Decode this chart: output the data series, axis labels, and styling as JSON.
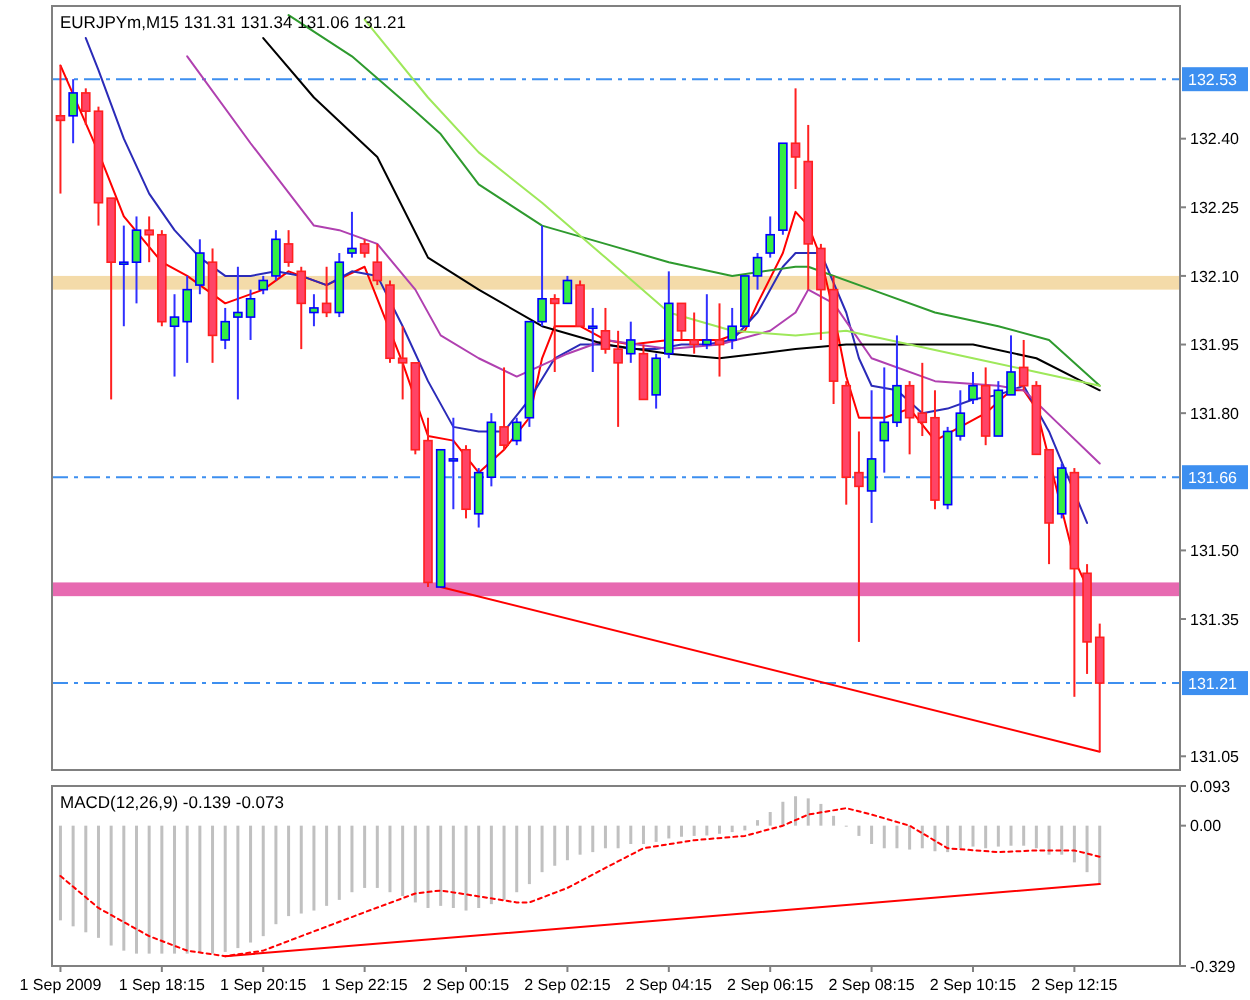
{
  "chart_data": [
    {
      "type": "candlestick",
      "title": "EURJPYm,M15  131.31 131.34 131.06 131.21",
      "tick_labels": "y",
      "xlim": [
        "2009-09-01T16:05",
        "2009-09-02T14:20"
      ],
      "ylim": [
        131.02,
        132.69
      ],
      "yticks": [
        {
          "value": 132.4,
          "label": "132.40"
        },
        132.25,
        {
          "value": 132.1,
          "label": "132.10"
        },
        131.95,
        {
          "value": 131.8,
          "label": "131.80"
        },
        {
          "value": 131.5,
          "label": "131.50"
        },
        131.35,
        131.05
      ],
      "x": [
        "2009-09-01T16:15",
        "2009-09-01T16:30",
        "2009-09-01T16:45",
        "2009-09-01T17:00",
        "2009-09-01T17:15",
        "2009-09-01T17:30",
        "2009-09-01T17:45",
        "2009-09-01T18:00",
        "2009-09-01T18:15",
        "2009-09-01T18:30",
        "2009-09-01T18:45",
        "2009-09-01T19:00",
        "2009-09-01T19:15",
        "2009-09-01T19:30",
        "2009-09-01T19:45",
        "2009-09-01T20:00",
        "2009-09-01T20:15",
        "2009-09-01T20:30",
        "2009-09-01T20:45",
        "2009-09-01T21:00",
        "2009-09-01T21:15",
        "2009-09-01T21:30",
        "2009-09-01T21:45",
        "2009-09-01T22:00",
        "2009-09-01T22:15",
        "2009-09-01T22:30",
        "2009-09-01T22:45",
        "2009-09-01T23:00",
        "2009-09-01T23:15",
        "2009-09-01T23:30",
        "2009-09-01T23:45",
        "2009-09-02T00:00",
        "2009-09-02T00:15",
        "2009-09-02T00:30",
        "2009-09-02T00:45",
        "2009-09-02T01:00",
        "2009-09-02T01:15",
        "2009-09-02T01:30",
        "2009-09-02T01:45",
        "2009-09-02T02:00",
        "2009-09-02T02:15",
        "2009-09-02T02:30",
        "2009-09-02T02:45",
        "2009-09-02T03:00",
        "2009-09-02T03:15",
        "2009-09-02T03:30",
        "2009-09-02T03:45",
        "2009-09-02T04:00",
        "2009-09-02T04:15",
        "2009-09-02T04:30",
        "2009-09-02T04:45",
        "2009-09-02T05:00",
        "2009-09-02T05:15",
        "2009-09-02T05:30",
        "2009-09-02T05:45",
        "2009-09-02T06:00",
        "2009-09-02T06:15",
        "2009-09-02T06:30",
        "2009-09-02T06:45",
        "2009-09-02T07:00",
        "2009-09-02T07:15",
        "2009-09-02T07:30",
        "2009-09-02T07:45",
        "2009-09-02T08:00",
        "2009-09-02T08:15",
        "2009-09-02T08:30",
        "2009-09-02T08:45",
        "2009-09-02T09:00",
        "2009-09-02T09:15",
        "2009-09-02T09:30",
        "2009-09-02T09:45",
        "2009-09-02T10:00",
        "2009-09-02T10:15",
        "2009-09-02T10:30",
        "2009-09-02T10:45",
        "2009-09-02T11:00",
        "2009-09-02T11:15",
        "2009-09-02T11:30",
        "2009-09-02T11:45",
        "2009-09-02T12:00",
        "2009-09-02T12:15",
        "2009-09-02T12:30",
        "2009-09-02T12:45"
      ],
      "ohlc": [
        [
          132.45,
          132.56,
          132.28,
          132.44
        ],
        [
          132.45,
          132.53,
          132.39,
          132.5
        ],
        [
          132.5,
          132.51,
          132.43,
          132.46
        ],
        [
          132.46,
          132.47,
          132.21,
          132.26
        ],
        [
          132.27,
          132.27,
          131.83,
          132.13
        ],
        [
          132.13,
          132.21,
          131.99,
          132.13
        ],
        [
          132.13,
          132.23,
          132.04,
          132.2
        ],
        [
          132.2,
          132.23,
          132.13,
          132.19
        ],
        [
          132.19,
          132.2,
          131.99,
          132.0
        ],
        [
          131.99,
          132.06,
          131.88,
          132.01
        ],
        [
          132.0,
          132.1,
          131.91,
          132.07
        ],
        [
          132.08,
          132.18,
          132.06,
          132.15
        ],
        [
          132.13,
          132.16,
          131.91,
          131.97
        ],
        [
          131.96,
          132.03,
          131.94,
          132.0
        ],
        [
          132.01,
          132.12,
          131.83,
          132.02
        ],
        [
          132.01,
          132.07,
          131.96,
          132.05
        ],
        [
          132.07,
          132.1,
          132.06,
          132.09
        ],
        [
          132.1,
          132.2,
          132.09,
          132.18
        ],
        [
          132.17,
          132.2,
          132.12,
          132.13
        ],
        [
          132.11,
          132.12,
          131.94,
          132.04
        ],
        [
          132.02,
          132.06,
          131.99,
          132.03
        ],
        [
          132.04,
          132.12,
          132.01,
          132.02
        ],
        [
          132.02,
          132.15,
          132.01,
          132.13
        ],
        [
          132.15,
          132.24,
          132.14,
          132.16
        ],
        [
          132.17,
          132.18,
          132.14,
          132.15
        ],
        [
          132.13,
          132.17,
          132.08,
          132.09
        ],
        [
          132.08,
          132.09,
          131.91,
          131.92
        ],
        [
          131.92,
          131.99,
          131.83,
          131.91
        ],
        [
          131.91,
          131.91,
          131.71,
          131.72
        ],
        [
          131.74,
          131.79,
          131.42,
          131.43
        ],
        [
          131.42,
          131.72,
          131.42,
          131.72
        ],
        [
          131.7,
          131.79,
          131.59,
          131.7
        ],
        [
          131.72,
          131.73,
          131.57,
          131.59
        ],
        [
          131.58,
          131.68,
          131.55,
          131.67
        ],
        [
          131.66,
          131.8,
          131.64,
          131.78
        ],
        [
          131.77,
          131.9,
          131.72,
          131.73
        ],
        [
          131.74,
          131.79,
          131.73,
          131.78
        ],
        [
          131.79,
          132.0,
          131.77,
          132.0
        ],
        [
          132.0,
          132.21,
          131.99,
          132.05
        ],
        [
          132.05,
          132.06,
          131.89,
          132.04
        ],
        [
          132.04,
          132.1,
          132.04,
          132.09
        ],
        [
          132.08,
          132.09,
          131.99,
          131.99
        ],
        [
          131.99,
          132.03,
          131.89,
          131.99
        ],
        [
          131.98,
          132.03,
          131.93,
          131.94
        ],
        [
          131.94,
          131.98,
          131.77,
          131.91
        ],
        [
          131.93,
          132.0,
          131.91,
          131.96
        ],
        [
          131.93,
          131.95,
          131.83,
          131.83
        ],
        [
          131.84,
          131.93,
          131.81,
          131.92
        ],
        [
          131.93,
          132.11,
          131.92,
          132.04
        ],
        [
          132.04,
          132.04,
          131.96,
          131.98
        ],
        [
          131.96,
          132.02,
          131.93,
          131.95
        ],
        [
          131.95,
          132.06,
          131.94,
          131.96
        ],
        [
          131.96,
          132.04,
          131.88,
          131.95
        ],
        [
          131.96,
          132.03,
          131.94,
          131.99
        ],
        [
          131.99,
          132.1,
          131.99,
          132.1
        ],
        [
          132.1,
          132.15,
          132.07,
          132.14
        ],
        [
          132.15,
          132.23,
          132.14,
          132.19
        ],
        [
          132.2,
          132.39,
          132.19,
          132.39
        ],
        [
          132.39,
          132.51,
          132.29,
          132.36
        ],
        [
          132.35,
          132.43,
          132.07,
          132.17
        ],
        [
          132.16,
          132.17,
          131.96,
          132.07
        ],
        [
          132.07,
          132.1,
          131.82,
          131.87
        ],
        [
          131.86,
          131.87,
          131.6,
          131.66
        ],
        [
          131.67,
          131.76,
          131.3,
          131.64
        ],
        [
          131.63,
          131.85,
          131.56,
          131.7
        ],
        [
          131.74,
          131.9,
          131.67,
          131.78
        ],
        [
          131.78,
          131.97,
          131.77,
          131.86
        ],
        [
          131.86,
          131.87,
          131.71,
          131.79
        ],
        [
          131.8,
          131.91,
          131.75,
          131.78
        ],
        [
          131.79,
          131.85,
          131.59,
          131.61
        ],
        [
          131.6,
          131.77,
          131.59,
          131.76
        ],
        [
          131.75,
          131.85,
          131.74,
          131.8
        ],
        [
          131.83,
          131.89,
          131.82,
          131.86
        ],
        [
          131.86,
          131.9,
          131.73,
          131.75
        ],
        [
          131.75,
          131.87,
          131.75,
          131.85
        ],
        [
          131.84,
          131.97,
          131.84,
          131.89
        ],
        [
          131.9,
          131.96,
          131.85,
          131.86
        ],
        [
          131.86,
          131.87,
          131.71,
          131.71
        ],
        [
          131.72,
          131.72,
          131.47,
          131.56
        ],
        [
          131.58,
          131.69,
          131.57,
          131.68
        ],
        [
          131.67,
          131.68,
          131.18,
          131.46
        ],
        [
          131.45,
          131.47,
          131.23,
          131.3
        ],
        [
          131.31,
          131.34,
          131.06,
          131.21
        ]
      ],
      "series": [
        {
          "type": "line",
          "color": "#ff0000",
          "x": [
            "2009-09-01T16:15",
            "2009-09-01T17:00",
            "2009-09-01T17:30",
            "2009-09-01T18:15",
            "2009-09-01T18:45",
            "2009-09-01T19:30",
            "2009-09-01T20:15",
            "2009-09-01T20:45",
            "2009-09-01T21:30",
            "2009-09-01T22:15",
            "2009-09-01T23:00",
            "2009-09-01T23:30",
            "2009-09-02T00:00",
            "2009-09-02T00:30",
            "2009-09-02T01:00",
            "2009-09-02T01:30",
            "2009-09-02T01:45",
            "2009-09-02T02:00",
            "2009-09-02T02:30",
            "2009-09-02T03:00",
            "2009-09-02T03:30",
            "2009-09-02T04:15",
            "2009-09-02T05:15",
            "2009-09-02T05:45",
            "2009-09-02T06:00",
            "2009-09-02T06:30",
            "2009-09-02T06:45",
            "2009-09-02T07:00",
            "2009-09-02T07:15",
            "2009-09-02T07:30",
            "2009-09-02T07:45",
            "2009-09-02T08:00",
            "2009-09-02T08:30",
            "2009-09-02T09:00",
            "2009-09-02T09:30",
            "2009-09-02T10:00",
            "2009-09-02T10:30",
            "2009-09-02T11:00",
            "2009-09-02T11:15",
            "2009-09-02T11:30",
            "2009-09-02T12:00",
            "2009-09-02T12:15",
            "2009-09-02T12:30"
          ],
          "values": [
            132.56,
            132.37,
            132.23,
            132.13,
            132.1,
            132.04,
            132.07,
            132.11,
            132.08,
            132.12,
            131.91,
            131.75,
            131.74,
            131.67,
            131.72,
            131.79,
            131.92,
            131.99,
            131.99,
            131.96,
            131.95,
            131.96,
            131.96,
            131.98,
            132.04,
            132.15,
            132.24,
            132.21,
            132.14,
            132.02,
            131.88,
            131.79,
            131.79,
            131.81,
            131.74,
            131.77,
            131.8,
            131.85,
            131.85,
            131.81,
            131.59,
            131.48,
            131.42
          ]
        },
        {
          "type": "line",
          "color": "#2b2bb8",
          "x": [
            "2009-09-01T16:45",
            "2009-09-01T17:00",
            "2009-09-01T17:30",
            "2009-09-01T18:00",
            "2009-09-01T18:30",
            "2009-09-01T19:00",
            "2009-09-01T19:30",
            "2009-09-01T20:00",
            "2009-09-01T20:30",
            "2009-09-01T21:00",
            "2009-09-01T21:30",
            "2009-09-01T22:00",
            "2009-09-01T22:30",
            "2009-09-01T23:00",
            "2009-09-01T23:30",
            "2009-09-02T00:00",
            "2009-09-02T00:30",
            "2009-09-02T01:00",
            "2009-09-02T01:30",
            "2009-09-02T02:00",
            "2009-09-02T02:30",
            "2009-09-02T03:00",
            "2009-09-02T03:30",
            "2009-09-02T04:00",
            "2009-09-02T04:30",
            "2009-09-02T05:00",
            "2009-09-02T05:30",
            "2009-09-02T06:00",
            "2009-09-02T06:30",
            "2009-09-02T06:45",
            "2009-09-02T07:15",
            "2009-09-02T07:45",
            "2009-09-02T08:00",
            "2009-09-02T08:15",
            "2009-09-02T08:45",
            "2009-09-02T09:15",
            "2009-09-02T09:45",
            "2009-09-02T10:15",
            "2009-09-02T10:45",
            "2009-09-02T11:15",
            "2009-09-02T11:45",
            "2009-09-02T12:30"
          ],
          "values": [
            132.62,
            132.55,
            132.4,
            132.28,
            132.2,
            132.14,
            132.1,
            132.1,
            132.11,
            132.1,
            132.08,
            132.11,
            132.1,
            131.99,
            131.87,
            131.77,
            131.76,
            131.76,
            131.83,
            131.92,
            131.95,
            131.95,
            131.94,
            131.94,
            131.95,
            131.95,
            131.96,
            132.02,
            132.12,
            132.15,
            132.15,
            132.02,
            131.92,
            131.86,
            131.85,
            131.8,
            131.81,
            131.83,
            131.84,
            131.86,
            131.76,
            131.56
          ]
        },
        {
          "type": "line",
          "color": "#b040b0",
          "x": [
            "2009-09-01T18:45",
            "2009-09-01T20:00",
            "2009-09-01T21:15",
            "2009-09-01T21:45",
            "2009-09-01T22:30",
            "2009-09-01T23:15",
            "2009-09-01T23:45",
            "2009-09-02T00:30",
            "2009-09-02T01:15",
            "2009-09-02T02:15",
            "2009-09-02T03:00",
            "2009-09-02T04:15",
            "2009-09-02T05:15",
            "2009-09-02T06:15",
            "2009-09-02T06:45",
            "2009-09-02T07:00",
            "2009-09-02T07:30",
            "2009-09-02T08:15",
            "2009-09-02T09:30",
            "2009-09-02T10:45",
            "2009-09-02T11:15",
            "2009-09-02T12:00",
            "2009-09-02T12:45"
          ],
          "values": [
            132.58,
            132.39,
            132.21,
            132.2,
            132.17,
            132.07,
            131.97,
            131.92,
            131.88,
            131.93,
            131.96,
            131.94,
            131.95,
            131.98,
            132.02,
            132.07,
            132.04,
            131.92,
            131.87,
            131.86,
            131.85,
            131.77,
            131.69
          ]
        },
        {
          "type": "line",
          "color": "#000000",
          "x": [
            "2009-09-01T20:15",
            "2009-09-01T21:15",
            "2009-09-01T22:30",
            "2009-09-01T23:30",
            "2009-09-02T00:30",
            "2009-09-02T01:45",
            "2009-09-02T03:00",
            "2009-09-02T04:15",
            "2009-09-02T05:15",
            "2009-09-02T06:45",
            "2009-09-02T07:45",
            "2009-09-02T09:00",
            "2009-09-02T10:15",
            "2009-09-02T11:30",
            "2009-09-02T12:45"
          ],
          "values": [
            132.62,
            132.49,
            132.36,
            132.14,
            132.07,
            131.99,
            131.95,
            131.93,
            131.92,
            131.94,
            131.95,
            131.95,
            131.95,
            131.92,
            131.85
          ]
        },
        {
          "type": "line",
          "color": "#2e9a2e",
          "x": [
            "2009-09-01T20:45",
            "2009-09-01T22:00",
            "2009-09-01T23:15",
            "2009-09-01T23:45",
            "2009-09-02T00:30",
            "2009-09-02T01:45",
            "2009-09-02T03:00",
            "2009-09-02T04:15",
            "2009-09-02T05:30",
            "2009-09-02T06:45",
            "2009-09-02T07:00",
            "2009-09-02T08:15",
            "2009-09-02T09:30",
            "2009-09-02T10:45",
            "2009-09-02T11:45",
            "2009-09-02T12:45"
          ],
          "values": [
            132.67,
            132.58,
            132.46,
            132.41,
            132.3,
            132.21,
            132.17,
            132.13,
            132.1,
            132.12,
            132.12,
            132.07,
            132.02,
            131.99,
            131.96,
            131.86
          ]
        },
        {
          "type": "line",
          "color": "#9ee85a",
          "x": [
            "2009-09-01T22:15",
            "2009-09-01T23:30",
            "2009-09-02T00:30",
            "2009-09-02T01:45",
            "2009-09-02T03:00",
            "2009-09-02T04:15",
            "2009-09-02T05:30",
            "2009-09-02T06:45",
            "2009-09-02T07:45",
            "2009-09-02T09:00",
            "2009-09-02T10:15",
            "2009-09-02T11:30",
            "2009-09-02T12:45"
          ],
          "values": [
            132.66,
            132.49,
            132.37,
            132.26,
            132.14,
            132.02,
            131.98,
            131.97,
            131.98,
            131.95,
            131.92,
            131.89,
            131.86
          ]
        },
        {
          "type": "line",
          "color": "#ff0000",
          "x": [
            "2009-09-01T23:45",
            "2009-09-02T12:45"
          ],
          "values": [
            131.42,
            131.06
          ]
        }
      ],
      "bands": [
        {
          "axis": "y",
          "from": 132.07,
          "to": 132.1,
          "color": "#f3d7a0"
        },
        {
          "axis": "y",
          "from": 131.4,
          "to": 131.43,
          "color": "#e45aa8"
        }
      ],
      "ref_lines": [
        {
          "axis": "y",
          "value": 132.53,
          "label": "132.53",
          "color": "#3d8ff0"
        },
        {
          "axis": "y",
          "value": 131.66,
          "label": "131.66",
          "color": "#3d8ff0"
        },
        {
          "axis": "y",
          "value": 131.21,
          "label": "131.21",
          "color": "#3d8ff0"
        }
      ]
    },
    {
      "type": "bar",
      "title": "MACD(12,26,9) -0.139 -0.073",
      "xlim": [
        "2009-09-01T16:05",
        "2009-09-02T14:20"
      ],
      "ylim": [
        -0.329,
        0.093
      ],
      "yticks": [
        0.093,
        {
          "value": 0,
          "label": "0.00"
        },
        -0.329
      ],
      "xticks": [
        {
          "value": "2009-09-01T16:15",
          "label": "1 Sep 2009"
        },
        {
          "value": "2009-09-01T18:15",
          "label": "1 Sep 18:15"
        },
        {
          "value": "2009-09-01T20:15",
          "label": "1 Sep 20:15"
        },
        {
          "value": "2009-09-01T22:15",
          "label": "1 Sep 22:15"
        },
        {
          "value": "2009-09-02T00:15",
          "label": "2 Sep 00:15"
        },
        {
          "value": "2009-09-02T02:15",
          "label": "2 Sep 02:15"
        },
        {
          "value": "2009-09-02T04:15",
          "label": "2 Sep 04:15"
        },
        {
          "value": "2009-09-02T06:15",
          "label": "2 Sep 06:15"
        },
        {
          "value": "2009-09-02T08:15",
          "label": "2 Sep 08:15"
        },
        {
          "value": "2009-09-02T10:15",
          "label": "2 Sep 10:15"
        },
        {
          "value": "2009-09-02T12:15",
          "label": "2 Sep 12:15"
        }
      ],
      "x": [
        "2009-09-01T16:15",
        "2009-09-01T16:30",
        "2009-09-01T16:45",
        "2009-09-01T17:00",
        "2009-09-01T17:15",
        "2009-09-01T17:30",
        "2009-09-01T17:45",
        "2009-09-01T18:00",
        "2009-09-01T18:15",
        "2009-09-01T18:30",
        "2009-09-01T18:45",
        "2009-09-01T19:00",
        "2009-09-01T19:15",
        "2009-09-01T19:30",
        "2009-09-01T19:45",
        "2009-09-01T20:00",
        "2009-09-01T20:15",
        "2009-09-01T20:30",
        "2009-09-01T20:45",
        "2009-09-01T21:00",
        "2009-09-01T21:15",
        "2009-09-01T21:30",
        "2009-09-01T21:45",
        "2009-09-01T22:00",
        "2009-09-01T22:15",
        "2009-09-01T22:30",
        "2009-09-01T22:45",
        "2009-09-01T23:00",
        "2009-09-01T23:15",
        "2009-09-01T23:30",
        "2009-09-01T23:45",
        "2009-09-02T00:00",
        "2009-09-02T00:15",
        "2009-09-02T00:30",
        "2009-09-02T00:45",
        "2009-09-02T01:00",
        "2009-09-02T01:15",
        "2009-09-02T01:30",
        "2009-09-02T01:45",
        "2009-09-02T02:00",
        "2009-09-02T02:15",
        "2009-09-02T02:30",
        "2009-09-02T02:45",
        "2009-09-02T03:00",
        "2009-09-02T03:15",
        "2009-09-02T03:30",
        "2009-09-02T03:45",
        "2009-09-02T04:00",
        "2009-09-02T04:15",
        "2009-09-02T04:30",
        "2009-09-02T04:45",
        "2009-09-02T05:00",
        "2009-09-02T05:15",
        "2009-09-02T05:30",
        "2009-09-02T05:45",
        "2009-09-02T06:00",
        "2009-09-02T06:15",
        "2009-09-02T06:30",
        "2009-09-02T06:45",
        "2009-09-02T07:00",
        "2009-09-02T07:15",
        "2009-09-02T07:30",
        "2009-09-02T07:45",
        "2009-09-02T08:00",
        "2009-09-02T08:15",
        "2009-09-02T08:30",
        "2009-09-02T08:45",
        "2009-09-02T09:00",
        "2009-09-02T09:15",
        "2009-09-02T09:30",
        "2009-09-02T09:45",
        "2009-09-02T10:00",
        "2009-09-02T10:15",
        "2009-09-02T10:30",
        "2009-09-02T10:45",
        "2009-09-02T11:00",
        "2009-09-02T11:15",
        "2009-09-02T11:30",
        "2009-09-02T11:45",
        "2009-09-02T12:00",
        "2009-09-02T12:15",
        "2009-09-02T12:30",
        "2009-09-02T12:45"
      ],
      "series": [
        {
          "type": "bar",
          "color": "#c0c0c0",
          "values": [
            -0.222,
            -0.236,
            -0.25,
            -0.263,
            -0.281,
            -0.293,
            -0.3,
            -0.3,
            -0.3,
            -0.3,
            -0.3,
            -0.296,
            -0.3,
            -0.296,
            -0.287,
            -0.274,
            -0.259,
            -0.231,
            -0.212,
            -0.206,
            -0.199,
            -0.188,
            -0.174,
            -0.156,
            -0.146,
            -0.146,
            -0.156,
            -0.165,
            -0.18,
            -0.193,
            -0.188,
            -0.193,
            -0.199,
            -0.193,
            -0.184,
            -0.174,
            -0.156,
            -0.137,
            -0.109,
            -0.094,
            -0.081,
            -0.068,
            -0.062,
            -0.053,
            -0.053,
            -0.043,
            -0.043,
            -0.038,
            -0.03,
            -0.026,
            -0.024,
            -0.023,
            -0.019,
            -0.015,
            -0.011,
            0.013,
            0.032,
            0.056,
            0.069,
            0.064,
            0.051,
            0.023,
            0,
            -0.024,
            -0.043,
            -0.053,
            -0.053,
            -0.056,
            -0.053,
            -0.06,
            -0.062,
            -0.053,
            -0.049,
            -0.053,
            -0.049,
            -0.047,
            -0.047,
            -0.053,
            -0.068,
            -0.068,
            -0.086,
            -0.109,
            -0.139
          ]
        },
        {
          "type": "line",
          "color": "#ff0000",
          "line_style": "dotted",
          "x": [
            "2009-09-01T16:15",
            "2009-09-01T17:00",
            "2009-09-01T18:00",
            "2009-09-01T18:45",
            "2009-09-01T19:30",
            "2009-09-01T20:15",
            "2009-09-01T21:00",
            "2009-09-01T22:15",
            "2009-09-01T23:15",
            "2009-09-01T23:45",
            "2009-09-02T00:15",
            "2009-09-02T01:15",
            "2009-09-02T01:30",
            "2009-09-02T02:15",
            "2009-09-02T03:00",
            "2009-09-02T03:45",
            "2009-09-02T04:45",
            "2009-09-02T05:45",
            "2009-09-02T06:30",
            "2009-09-02T07:00",
            "2009-09-02T07:45",
            "2009-09-02T08:15",
            "2009-09-02T09:00",
            "2009-09-02T09:45",
            "2009-09-02T10:45",
            "2009-09-02T11:30",
            "2009-09-02T12:15",
            "2009-09-02T12:45"
          ],
          "values": [
            -0.118,
            -0.193,
            -0.259,
            -0.293,
            -0.306,
            -0.293,
            -0.259,
            -0.203,
            -0.159,
            -0.152,
            -0.161,
            -0.18,
            -0.18,
            -0.146,
            -0.099,
            -0.053,
            -0.034,
            -0.024,
            0,
            0.026,
            0.041,
            0.026,
            0,
            -0.053,
            -0.062,
            -0.058,
            -0.058,
            -0.073
          ]
        },
        {
          "type": "line",
          "color": "#ff0000",
          "x": [
            "2009-09-01T19:30",
            "2009-09-02T12:45"
          ],
          "values": [
            -0.306,
            -0.137
          ]
        }
      ]
    }
  ]
}
